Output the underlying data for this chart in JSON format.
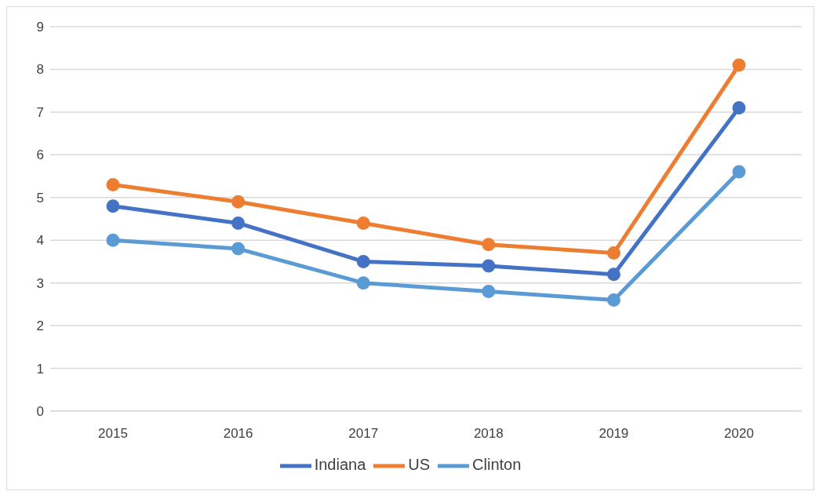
{
  "chart_data": {
    "type": "line",
    "categories": [
      "2015",
      "2016",
      "2017",
      "2018",
      "2019",
      "2020"
    ],
    "series": [
      {
        "name": "Indiana",
        "color": "#4472c4",
        "values": [
          4.8,
          4.4,
          3.5,
          3.4,
          3.2,
          7.1
        ]
      },
      {
        "name": "US",
        "color": "#ed7d31",
        "values": [
          5.3,
          4.9,
          4.4,
          3.9,
          3.7,
          8.1
        ]
      },
      {
        "name": "Clinton",
        "color": "#5b9bd5",
        "values": [
          4.0,
          3.8,
          3.0,
          2.8,
          2.6,
          5.6
        ]
      }
    ],
    "ylim": [
      0,
      9
    ],
    "yticks": [
      0,
      1,
      2,
      3,
      4,
      5,
      6,
      7,
      8,
      9
    ],
    "grid": "y",
    "legend": "bottom",
    "marker": "circle",
    "line_style": "solid"
  }
}
